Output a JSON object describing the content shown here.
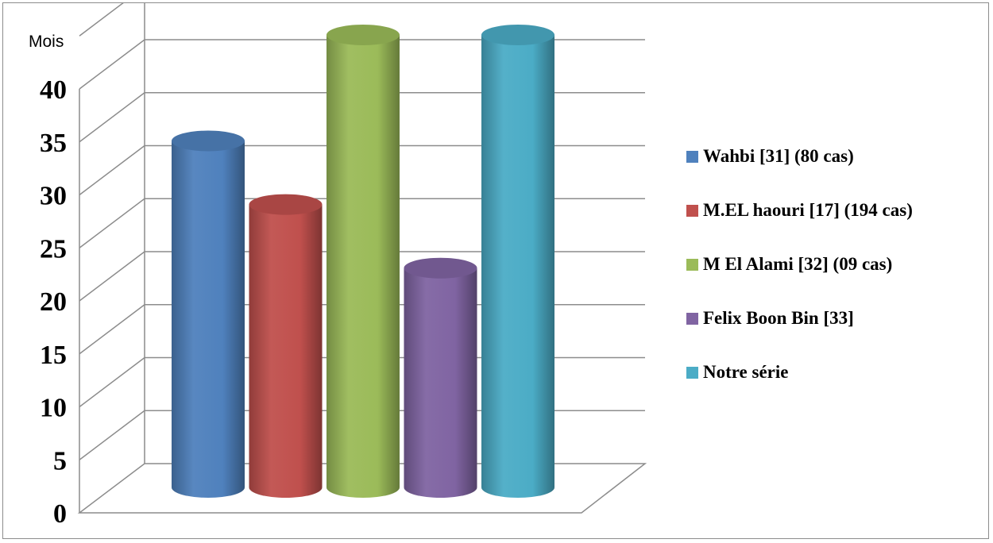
{
  "chart_data": {
    "type": "bar",
    "ylabel": "Mois",
    "ylim": [
      0,
      40
    ],
    "yticks": [
      "0",
      "5",
      "10",
      "15",
      "20",
      "25",
      "30",
      "35",
      "40"
    ],
    "grid": true,
    "legend_position": "right",
    "series": [
      {
        "name": "Wahbi [31] (80 cas)",
        "value": 30,
        "color": "#4f81bd"
      },
      {
        "name": "M.EL haouri [17] (194 cas)",
        "value": 24,
        "color": "#c0504d"
      },
      {
        "name": "M El Alami [32] (09 cas)",
        "value": 40,
        "color": "#9bbb59"
      },
      {
        "name": "Felix Boon Bin [33]",
        "value": 18,
        "color": "#8064a2"
      },
      {
        "name": "Notre série",
        "value": 40,
        "color": "#4bacc6"
      }
    ]
  }
}
